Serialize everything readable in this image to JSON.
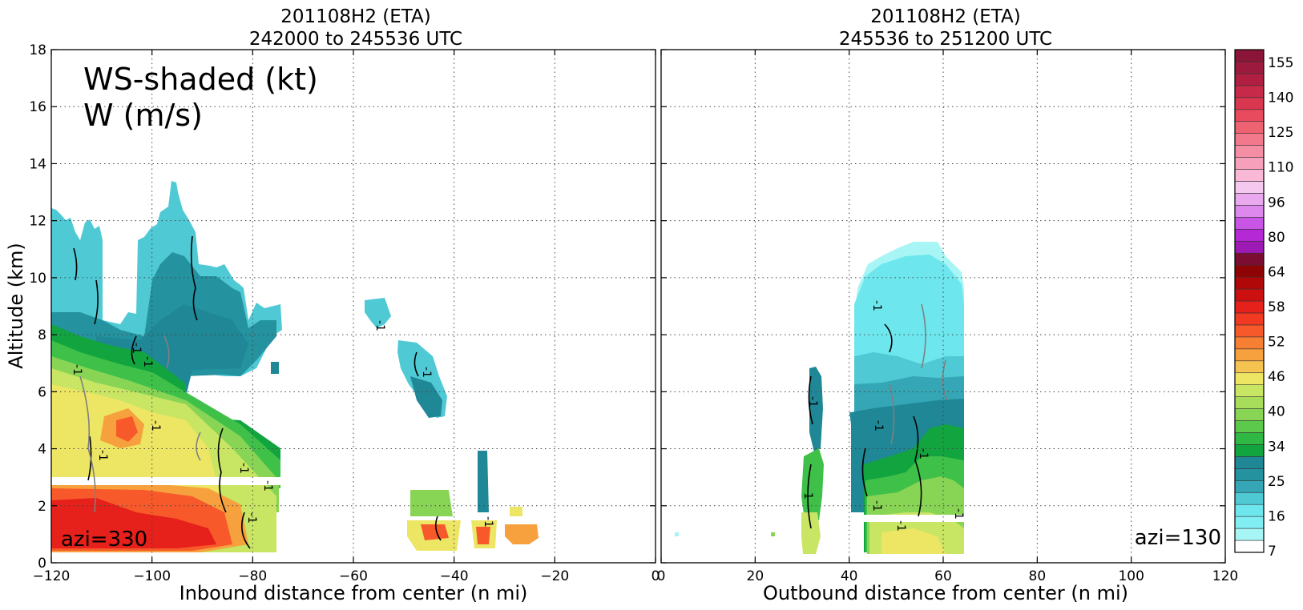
{
  "colors": {
    "cyan_light": "#a8f5f5",
    "cyan": "#6ee6ee",
    "cyan_mid": "#4fc9d4",
    "teal": "#35a6b5",
    "teal_dark": "#1f8796",
    "green_dark": "#12a43f",
    "green": "#3fc048",
    "green_light": "#88d555",
    "yellow_green": "#c8e563",
    "yellow": "#ede564",
    "orange": "#f6a13e",
    "red_orange": "#f8592b",
    "red": "#e6201a"
  },
  "chart_data": [
    {
      "type": "heatmap",
      "title": "201108H2 (ETA)",
      "subtitle": "242000 to 245536 UTC",
      "xlabel": "Inbound distance from center (n mi)",
      "ylabel": "Altitude (km)",
      "xlim": [
        -120,
        0
      ],
      "ylim": [
        0,
        18
      ],
      "x_ticks": [
        "−120",
        "−100",
        "−80",
        "−60",
        "−40",
        "−20",
        "0"
      ],
      "y_ticks": [
        "0",
        "2",
        "4",
        "6",
        "8",
        "10",
        "12",
        "14",
        "16",
        "18"
      ],
      "grid": true,
      "annotation": "WS-shaded (kt)",
      "annotation2": "W (m/s)",
      "azimuth_label": "azi=330",
      "contour_label": "-1"
    },
    {
      "type": "heatmap",
      "title": "201108H2 (ETA)",
      "subtitle": "245536 to 251200 UTC",
      "xlabel": "Outbound distance from center (n mi)",
      "xlim": [
        0,
        120
      ],
      "ylim": [
        0,
        18
      ],
      "x_ticks": [
        "0",
        "20",
        "40",
        "60",
        "80",
        "100",
        "120"
      ],
      "grid": true,
      "azimuth_label": "azi=130",
      "contour_label": "-1"
    }
  ],
  "colorbar": {
    "tick_labels": [
      "155",
      "140",
      "125",
      "110",
      "96",
      "80",
      "64",
      "58",
      "52",
      "46",
      "40",
      "34",
      "25",
      "16",
      "7"
    ],
    "levels": [
      "#ffffff",
      "#a8f5f5",
      "#80eef2",
      "#6ee6ee",
      "#4fc9d4",
      "#35a6b5",
      "#24929f",
      "#1f8796",
      "#12a43f",
      "#2fb844",
      "#5cc94c",
      "#88d555",
      "#a8dd5c",
      "#c8e563",
      "#ede564",
      "#f4c350",
      "#f6a13e",
      "#f67f33",
      "#f8592b",
      "#f23a22",
      "#e6201a",
      "#cc1010",
      "#b00808",
      "#8e0404",
      "#7b0d33",
      "#9e1ab5",
      "#b528d6",
      "#c955e6",
      "#dc88ec",
      "#eaa9ef",
      "#f5c9ef",
      "#f8b8d6",
      "#f6a0bc",
      "#f48ea4",
      "#f2788c",
      "#ee6372",
      "#e84a5e",
      "#d93650",
      "#c62a48",
      "#b01f42",
      "#9c1a3d",
      "#8a1538"
    ]
  }
}
